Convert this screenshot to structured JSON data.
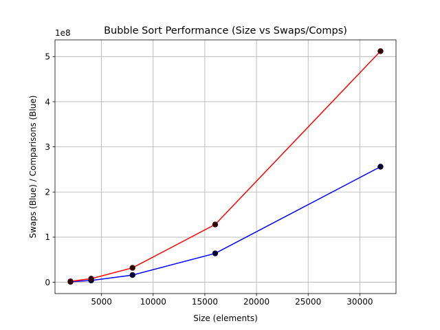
{
  "chart_data": {
    "type": "line",
    "title": "Bubble Sort Performance (Size vs Swaps/Comps)",
    "xlabel": "Size (elements)",
    "ylabel": "Swaps (Blue) / Comparisons (Blue)",
    "y_offset_label": "1e8",
    "x": [
      2000,
      4000,
      8000,
      16000,
      32000
    ],
    "series": [
      {
        "values": [
          1000000,
          4000000,
          16000000,
          64000000,
          256000000
        ],
        "color": "#0000ff",
        "marker_color": "#000033"
      },
      {
        "values": [
          2000000,
          8000000,
          32000000,
          128000000,
          512000000
        ],
        "color": "#ff0000",
        "marker_color": "#330000"
      }
    ],
    "xlim": [
      500,
      33500
    ],
    "ylim": [
      -25000000,
      537000000
    ],
    "xticks": [
      5000,
      10000,
      15000,
      20000,
      25000,
      30000
    ],
    "xtick_labels": [
      "5000",
      "10000",
      "15000",
      "20000",
      "25000",
      "30000"
    ],
    "yticks": [
      0,
      100000000,
      200000000,
      300000000,
      400000000,
      500000000
    ],
    "ytick_labels": [
      "0",
      "1",
      "2",
      "3",
      "4",
      "5"
    ],
    "grid": true
  }
}
